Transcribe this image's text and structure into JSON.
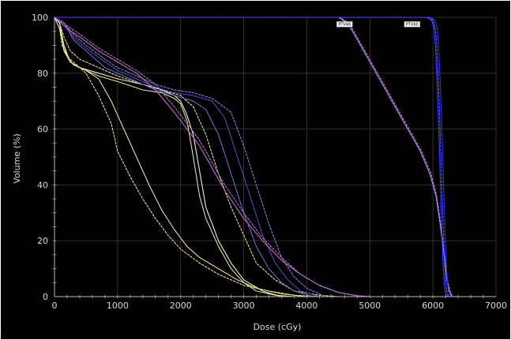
{
  "chart_data": {
    "type": "line",
    "title": "",
    "xlabel": "Dose (cGy)",
    "ylabel": "Volume (%)",
    "xlim": [
      0,
      7000
    ],
    "ylim": [
      0,
      100
    ],
    "xticks": [
      0,
      1000,
      2000,
      3000,
      4000,
      5000,
      6000,
      7000
    ],
    "yticks": [
      0,
      20,
      40,
      60,
      80,
      100
    ],
    "x_minor_step": 200,
    "y_minor_step": 5,
    "grid": true,
    "background": "#000000",
    "annotations": [
      {
        "text": "PTV46",
        "x": 4600,
        "y": 98.5
      },
      {
        "text": "PTV60",
        "x": 5670,
        "y": 98.5
      }
    ],
    "series": [
      {
        "color": "#e6e08a",
        "points": [
          [
            0,
            100
          ],
          [
            80,
            98
          ],
          [
            150,
            90
          ],
          [
            250,
            84
          ],
          [
            400,
            82
          ],
          [
            700,
            79
          ],
          [
            1000,
            77
          ],
          [
            1400,
            74
          ],
          [
            1700,
            73
          ],
          [
            1900,
            71
          ],
          [
            2000,
            69
          ],
          [
            2100,
            63
          ],
          [
            2200,
            50
          ],
          [
            2300,
            36
          ],
          [
            2400,
            28
          ],
          [
            2600,
            18
          ],
          [
            2800,
            10
          ],
          [
            3000,
            5
          ],
          [
            3200,
            2
          ],
          [
            3500,
            0.5
          ],
          [
            3800,
            0
          ]
        ]
      },
      {
        "color": "#e6e08a",
        "dashed": true,
        "points": [
          [
            0,
            100
          ],
          [
            80,
            98
          ],
          [
            150,
            93
          ],
          [
            250,
            88
          ],
          [
            400,
            85
          ],
          [
            700,
            82
          ],
          [
            1000,
            79
          ],
          [
            1400,
            76
          ],
          [
            1700,
            74
          ],
          [
            2000,
            72
          ],
          [
            2200,
            68
          ],
          [
            2400,
            58
          ],
          [
            2600,
            44
          ],
          [
            2800,
            32
          ],
          [
            3000,
            22
          ],
          [
            3200,
            12
          ],
          [
            3500,
            6
          ],
          [
            3800,
            2
          ],
          [
            4200,
            0.5
          ],
          [
            4500,
            0
          ]
        ]
      },
      {
        "color": "#f2f2d2",
        "points": [
          [
            0,
            100
          ],
          [
            80,
            98
          ],
          [
            150,
            88
          ],
          [
            250,
            84
          ],
          [
            400,
            82
          ],
          [
            700,
            80
          ],
          [
            1000,
            78
          ],
          [
            1400,
            76
          ],
          [
            1700,
            74
          ],
          [
            1900,
            72
          ],
          [
            2000,
            70
          ],
          [
            2100,
            65
          ],
          [
            2200,
            58
          ],
          [
            2300,
            45
          ],
          [
            2400,
            32
          ],
          [
            2600,
            20
          ],
          [
            2800,
            12
          ],
          [
            3000,
            6
          ],
          [
            3300,
            2
          ],
          [
            3600,
            0
          ]
        ]
      },
      {
        "color": "#e6e08a",
        "points": [
          [
            0,
            100
          ],
          [
            80,
            96
          ],
          [
            120,
            92
          ],
          [
            200,
            86
          ],
          [
            300,
            83
          ],
          [
            500,
            81
          ],
          [
            700,
            78
          ],
          [
            900,
            70
          ],
          [
            1100,
            60
          ],
          [
            1300,
            50
          ],
          [
            1500,
            40
          ],
          [
            1700,
            31
          ],
          [
            1900,
            24
          ],
          [
            2100,
            18
          ],
          [
            2300,
            14
          ],
          [
            2600,
            10
          ],
          [
            2900,
            6
          ],
          [
            3200,
            3
          ],
          [
            3600,
            1
          ],
          [
            4000,
            0
          ]
        ]
      },
      {
        "color": "#e6e08a",
        "dashed": true,
        "points": [
          [
            0,
            100
          ],
          [
            80,
            96
          ],
          [
            120,
            90
          ],
          [
            200,
            86
          ],
          [
            300,
            84
          ],
          [
            500,
            80
          ],
          [
            700,
            72
          ],
          [
            900,
            62
          ],
          [
            1000,
            52
          ],
          [
            1200,
            43
          ],
          [
            1400,
            35
          ],
          [
            1600,
            28
          ],
          [
            1800,
            22
          ],
          [
            2000,
            17
          ],
          [
            2300,
            12
          ],
          [
            2600,
            8
          ],
          [
            3000,
            4
          ],
          [
            3400,
            2
          ],
          [
            3800,
            0.5
          ],
          [
            4200,
            0
          ]
        ]
      },
      {
        "color": "#6d66c9",
        "points": [
          [
            0,
            100
          ],
          [
            150,
            98
          ],
          [
            300,
            92
          ],
          [
            500,
            88
          ],
          [
            800,
            82
          ],
          [
            1000,
            80
          ],
          [
            1300,
            77
          ],
          [
            1600,
            74
          ],
          [
            1900,
            72
          ],
          [
            2200,
            70
          ],
          [
            2400,
            67
          ],
          [
            2600,
            58
          ],
          [
            2800,
            44
          ],
          [
            3000,
            30
          ],
          [
            3200,
            18
          ],
          [
            3400,
            10
          ],
          [
            3600,
            5
          ],
          [
            3800,
            2
          ],
          [
            4100,
            0
          ]
        ]
      },
      {
        "color": "#4a4ab8",
        "points": [
          [
            0,
            100
          ],
          [
            150,
            98
          ],
          [
            300,
            93
          ],
          [
            500,
            89
          ],
          [
            800,
            84
          ],
          [
            1000,
            81
          ],
          [
            1300,
            78
          ],
          [
            1600,
            75
          ],
          [
            1900,
            73
          ],
          [
            2200,
            72
          ],
          [
            2500,
            70
          ],
          [
            2700,
            64
          ],
          [
            2900,
            50
          ],
          [
            3100,
            36
          ],
          [
            3300,
            22
          ],
          [
            3500,
            12
          ],
          [
            3700,
            6
          ],
          [
            3900,
            2
          ],
          [
            4200,
            0
          ]
        ]
      },
      {
        "color": "#8b7fd8",
        "dashed": true,
        "points": [
          [
            0,
            100
          ],
          [
            150,
            98
          ],
          [
            300,
            94
          ],
          [
            500,
            90
          ],
          [
            800,
            85
          ],
          [
            1000,
            82
          ],
          [
            1300,
            79
          ],
          [
            1600,
            76
          ],
          [
            1900,
            74
          ],
          [
            2200,
            73
          ],
          [
            2500,
            71
          ],
          [
            2800,
            66
          ],
          [
            3000,
            54
          ],
          [
            3200,
            40
          ],
          [
            3400,
            26
          ],
          [
            3600,
            14
          ],
          [
            3800,
            7
          ],
          [
            4000,
            3
          ],
          [
            4300,
            0
          ]
        ]
      },
      {
        "color": "#c868c8",
        "points": [
          [
            0,
            100
          ],
          [
            200,
            96
          ],
          [
            400,
            93
          ],
          [
            700,
            88
          ],
          [
            1000,
            84
          ],
          [
            1300,
            80
          ],
          [
            1600,
            74
          ],
          [
            1900,
            66
          ],
          [
            2100,
            60
          ],
          [
            2300,
            54
          ],
          [
            2500,
            46
          ],
          [
            2700,
            38
          ],
          [
            3000,
            28
          ],
          [
            3300,
            20
          ],
          [
            3600,
            13
          ],
          [
            3900,
            8
          ],
          [
            4200,
            4
          ],
          [
            4500,
            1.5
          ],
          [
            4800,
            0.3
          ],
          [
            5000,
            0
          ]
        ]
      },
      {
        "color": "#b070e0",
        "dashed": true,
        "points": [
          [
            0,
            100
          ],
          [
            200,
            97
          ],
          [
            400,
            94
          ],
          [
            700,
            89
          ],
          [
            1000,
            85
          ],
          [
            1300,
            81
          ],
          [
            1600,
            76
          ],
          [
            1900,
            68
          ],
          [
            2100,
            62
          ],
          [
            2300,
            56
          ],
          [
            2500,
            48
          ],
          [
            2700,
            40
          ],
          [
            3000,
            30
          ],
          [
            3300,
            21
          ],
          [
            3600,
            14
          ],
          [
            3900,
            8
          ],
          [
            4200,
            4
          ],
          [
            4500,
            1.5
          ],
          [
            4800,
            0.3
          ],
          [
            5000,
            0
          ]
        ]
      },
      {
        "color": "#9a8ee8",
        "points": [
          [
            0,
            100
          ],
          [
            4500,
            100
          ],
          [
            4650,
            98
          ],
          [
            4800,
            92
          ],
          [
            5000,
            84
          ],
          [
            5200,
            76
          ],
          [
            5400,
            68
          ],
          [
            5600,
            60
          ],
          [
            5800,
            52
          ],
          [
            5950,
            44
          ],
          [
            6050,
            36
          ],
          [
            6120,
            25
          ],
          [
            6180,
            14
          ],
          [
            6220,
            6
          ],
          [
            6260,
            2
          ],
          [
            6300,
            0
          ]
        ]
      },
      {
        "color": "#e070d8",
        "dashed": true,
        "points": [
          [
            0,
            100
          ],
          [
            4520,
            100
          ],
          [
            4670,
            98
          ],
          [
            4820,
            92
          ],
          [
            5020,
            84
          ],
          [
            5220,
            76
          ],
          [
            5420,
            68
          ],
          [
            5620,
            60
          ],
          [
            5820,
            52
          ],
          [
            5970,
            44
          ],
          [
            6060,
            36
          ],
          [
            6130,
            25
          ],
          [
            6190,
            14
          ],
          [
            6230,
            6
          ],
          [
            6270,
            2
          ],
          [
            6310,
            0
          ]
        ]
      },
      {
        "color": "#3c3cff",
        "points": [
          [
            0,
            100
          ],
          [
            5900,
            100
          ],
          [
            5980,
            99
          ],
          [
            6020,
            96
          ],
          [
            6040,
            90
          ],
          [
            6060,
            80
          ],
          [
            6080,
            68
          ],
          [
            6100,
            55
          ],
          [
            6120,
            40
          ],
          [
            6140,
            25
          ],
          [
            6160,
            12
          ],
          [
            6180,
            5
          ],
          [
            6200,
            1
          ],
          [
            6220,
            0
          ]
        ]
      },
      {
        "color": "#2a2aff",
        "points": [
          [
            0,
            100
          ],
          [
            5950,
            100
          ],
          [
            6030,
            99
          ],
          [
            6070,
            96
          ],
          [
            6090,
            90
          ],
          [
            6110,
            80
          ],
          [
            6130,
            68
          ],
          [
            6150,
            55
          ],
          [
            6170,
            40
          ],
          [
            6190,
            25
          ],
          [
            6210,
            12
          ],
          [
            6230,
            5
          ],
          [
            6250,
            1
          ],
          [
            6270,
            0
          ]
        ]
      },
      {
        "color": "#5c5cff",
        "dashed": true,
        "points": [
          [
            0,
            100
          ],
          [
            5920,
            100
          ],
          [
            6000,
            99
          ],
          [
            6045,
            95
          ],
          [
            6065,
            88
          ],
          [
            6085,
            78
          ],
          [
            6105,
            66
          ],
          [
            6125,
            52
          ],
          [
            6145,
            38
          ],
          [
            6165,
            24
          ],
          [
            6185,
            12
          ],
          [
            6205,
            5
          ],
          [
            6225,
            1
          ],
          [
            6245,
            0
          ]
        ]
      }
    ]
  }
}
